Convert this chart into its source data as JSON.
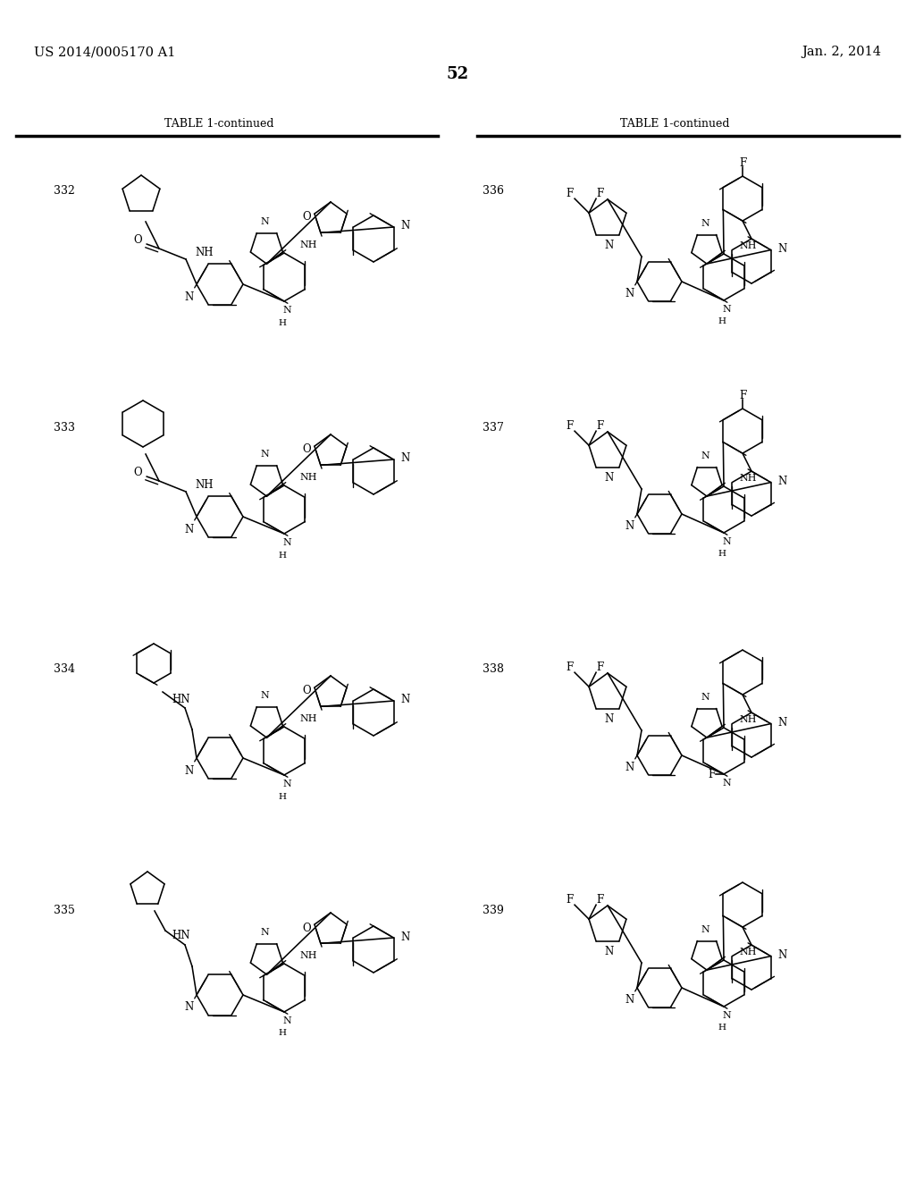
{
  "page_header_left": "US 2014/0005170 A1",
  "page_header_right": "Jan. 2, 2014",
  "page_number": "52",
  "table_title": "TABLE 1-continued",
  "compounds_left": [
    "332",
    "333",
    "334",
    "335"
  ],
  "compounds_right": [
    "336",
    "337",
    "338",
    "339"
  ]
}
